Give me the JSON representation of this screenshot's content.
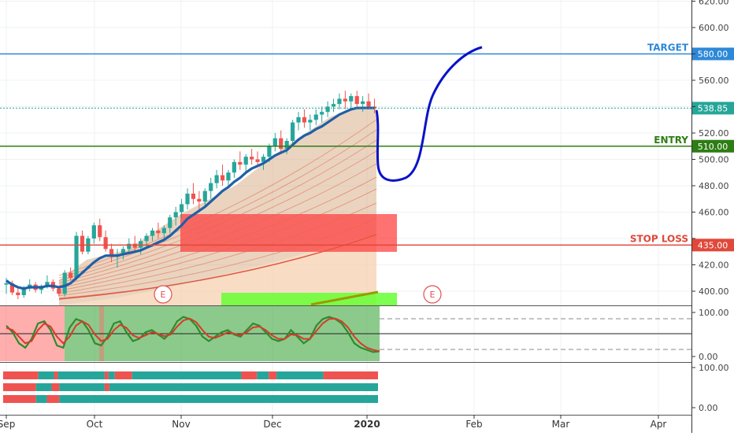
{
  "chart_data": {
    "type": "candlestick",
    "price_axis_ticks": [
      "620.00",
      "600.00",
      "580.00",
      "560.00",
      "540.00",
      "520.00",
      "500.00",
      "480.00",
      "460.00",
      "440.00",
      "420.00",
      "400.00"
    ],
    "price_ylim": [
      393,
      621
    ],
    "time_axis_labels": [
      "Sep",
      "Oct",
      "Nov",
      "Dec",
      "2020",
      "Feb",
      "Mar",
      "Apr"
    ],
    "levels": {
      "target": {
        "label": "TARGET",
        "value": 580,
        "badge": "580.00",
        "color": "#2e88d8"
      },
      "entry": {
        "label": "ENTRY",
        "value": 510,
        "badge": "510.00",
        "color": "#2e7d14"
      },
      "stop_loss": {
        "label": "STOP LOSS",
        "value": 435,
        "badge": "435.00",
        "color": "#e0483a"
      },
      "last_price": {
        "value": 538.85,
        "badge": "538.85",
        "color": "#26a69a"
      }
    },
    "earnings_markers": [
      "E",
      "E"
    ],
    "candles": [
      [
        405,
        410,
        398,
        406
      ],
      [
        406,
        408,
        397,
        399
      ],
      [
        399,
        402,
        394,
        397
      ],
      [
        397,
        404,
        395,
        402
      ],
      [
        402,
        409,
        400,
        405
      ],
      [
        405,
        407,
        399,
        401
      ],
      [
        401,
        405,
        398,
        404
      ],
      [
        404,
        412,
        402,
        407
      ],
      [
        407,
        409,
        400,
        402
      ],
      [
        402,
        404,
        396,
        398
      ],
      [
        398,
        416,
        396,
        414
      ],
      [
        414,
        418,
        408,
        410
      ],
      [
        410,
        445,
        408,
        442
      ],
      [
        442,
        446,
        428,
        430
      ],
      [
        430,
        442,
        428,
        440
      ],
      [
        440,
        452,
        436,
        450
      ],
      [
        450,
        455,
        438,
        441
      ],
      [
        441,
        446,
        430,
        432
      ],
      [
        432,
        436,
        422,
        426
      ],
      [
        426,
        432,
        418,
        428
      ],
      [
        428,
        434,
        424,
        432
      ],
      [
        432,
        440,
        428,
        436
      ],
      [
        436,
        442,
        430,
        433
      ],
      [
        433,
        440,
        428,
        438
      ],
      [
        438,
        444,
        434,
        442
      ],
      [
        442,
        448,
        438,
        446
      ],
      [
        446,
        452,
        440,
        444
      ],
      [
        444,
        450,
        438,
        448
      ],
      [
        448,
        458,
        444,
        456
      ],
      [
        456,
        464,
        450,
        460
      ],
      [
        460,
        470,
        455,
        466
      ],
      [
        466,
        478,
        462,
        474
      ],
      [
        474,
        482,
        466,
        470
      ],
      [
        470,
        476,
        462,
        468
      ],
      [
        468,
        478,
        464,
        476
      ],
      [
        476,
        486,
        470,
        482
      ],
      [
        482,
        492,
        478,
        488
      ],
      [
        488,
        496,
        480,
        484
      ],
      [
        484,
        492,
        478,
        490
      ],
      [
        490,
        500,
        486,
        498
      ],
      [
        498,
        506,
        492,
        496
      ],
      [
        496,
        504,
        490,
        502
      ],
      [
        502,
        508,
        496,
        500
      ],
      [
        500,
        506,
        494,
        498
      ],
      [
        498,
        504,
        492,
        502
      ],
      [
        502,
        512,
        498,
        510
      ],
      [
        510,
        520,
        506,
        516
      ],
      [
        516,
        522,
        504,
        508
      ],
      [
        508,
        516,
        504,
        514
      ],
      [
        514,
        530,
        510,
        528
      ],
      [
        528,
        536,
        522,
        532
      ],
      [
        532,
        538,
        524,
        528
      ],
      [
        528,
        534,
        522,
        530
      ],
      [
        530,
        538,
        526,
        534
      ],
      [
        534,
        540,
        528,
        536
      ],
      [
        536,
        544,
        532,
        540
      ],
      [
        540,
        546,
        536,
        542
      ],
      [
        542,
        550,
        538,
        546
      ],
      [
        546,
        552,
        538,
        544
      ],
      [
        544,
        550,
        538,
        548
      ],
      [
        548,
        552,
        540,
        542
      ],
      [
        542,
        548,
        536,
        544
      ],
      [
        544,
        550,
        538,
        540
      ],
      [
        540,
        546,
        535,
        539
      ]
    ],
    "ma_fast": [
      408,
      405,
      403,
      402,
      403,
      403,
      403,
      404,
      404,
      403,
      404,
      406,
      410,
      414,
      418,
      422,
      425,
      427,
      427,
      427,
      428,
      429,
      430,
      431,
      433,
      435,
      437,
      439,
      442,
      446,
      450,
      455,
      458,
      461,
      464,
      468,
      472,
      476,
      479,
      483,
      486,
      490,
      493,
      495,
      497,
      500,
      503,
      505,
      507,
      511,
      515,
      518,
      520,
      523,
      525,
      528,
      531,
      534,
      536,
      538,
      539,
      539,
      539,
      539
    ],
    "stochastic": {
      "ticks": [
        "100.00",
        "0.00"
      ],
      "k": [
        70,
        55,
        30,
        20,
        40,
        75,
        80,
        60,
        25,
        20,
        65,
        85,
        80,
        60,
        30,
        25,
        45,
        75,
        80,
        55,
        35,
        40,
        55,
        60,
        50,
        40,
        55,
        80,
        90,
        85,
        70,
        45,
        35,
        45,
        55,
        60,
        50,
        45,
        60,
        75,
        70,
        55,
        40,
        35,
        40,
        60,
        45,
        30,
        40,
        70,
        85,
        90,
        85,
        75,
        55,
        30,
        20,
        15,
        10,
        12
      ],
      "d": [
        65,
        60,
        45,
        30,
        35,
        60,
        75,
        68,
        45,
        30,
        45,
        70,
        80,
        72,
        50,
        35,
        40,
        60,
        72,
        65,
        48,
        42,
        48,
        55,
        52,
        46,
        50,
        68,
        82,
        86,
        78,
        60,
        45,
        42,
        48,
        55,
        52,
        48,
        55,
        66,
        68,
        60,
        48,
        40,
        40,
        50,
        48,
        40,
        40,
        58,
        75,
        85,
        86,
        80,
        66,
        45,
        30,
        20,
        15,
        12
      ]
    },
    "bar_indicator": {
      "ticks": [
        "100.00",
        "0.00"
      ]
    }
  }
}
